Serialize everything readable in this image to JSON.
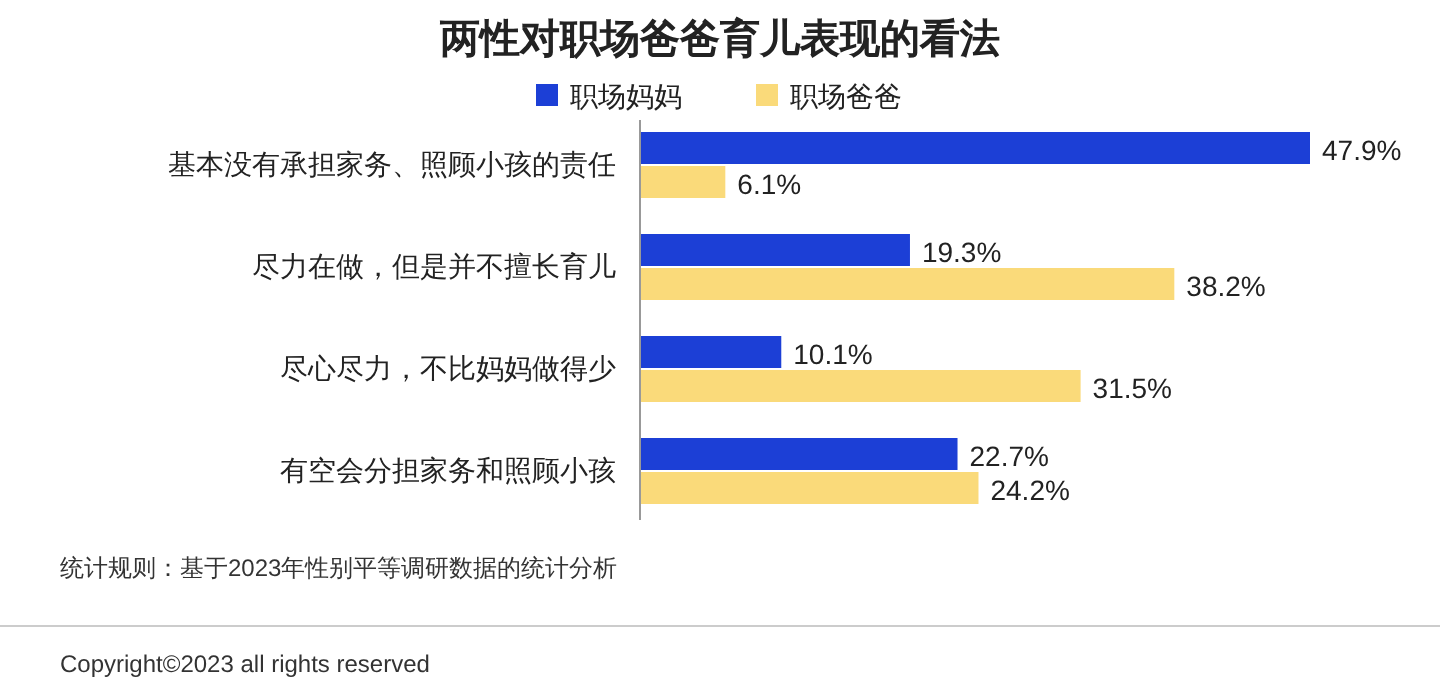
{
  "chart_data": {
    "type": "bar",
    "orientation": "horizontal",
    "title": "两性对职场爸爸育儿表现的看法",
    "categories": [
      "基本没有承担家务、照顾小孩的责任",
      "尽力在做，但是并不擅长育儿",
      "尽心尽力，不比妈妈做得少",
      "有空会分担家务和照顾小孩"
    ],
    "series": [
      {
        "name": "职场妈妈",
        "color": "#1c3fd6",
        "values": [
          47.9,
          19.3,
          10.1,
          22.7
        ],
        "value_labels": [
          "47.9%",
          "19.3%",
          "10.1%",
          "22.7%"
        ]
      },
      {
        "name": "职场爸爸",
        "color": "#fada7a",
        "values": [
          6.1,
          38.2,
          31.5,
          24.2
        ],
        "value_labels": [
          "6.1%",
          "38.2%",
          "31.5%",
          "24.2%"
        ]
      }
    ],
    "legend": "top",
    "annotations": [
      "统计规则：基于2023年性别平等调研数据的统计分析",
      "Copyright©2023 all rights reserved"
    ]
  }
}
